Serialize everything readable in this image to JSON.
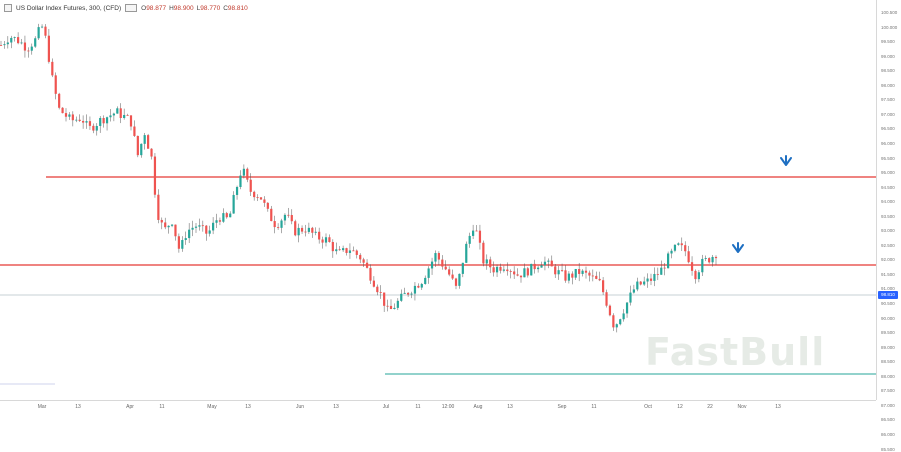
{
  "header": {
    "title": "US Dollar Index Futures, 300, (CFD)",
    "ohlc": [
      {
        "label": "O",
        "value": "98.877"
      },
      {
        "label": "H",
        "value": "98.900"
      },
      {
        "label": "L",
        "value": "98.770"
      },
      {
        "label": "C",
        "value": "98.810"
      }
    ]
  },
  "price_tag": "98.810",
  "watermark": "FastBull",
  "chart_data": {
    "type": "candlestick",
    "y_ticks": [
      "100.500",
      "100.000",
      "99.500",
      "99.000",
      "98.500",
      "98.000",
      "97.500",
      "97.000",
      "96.500",
      "96.000",
      "95.500",
      "95.000",
      "94.500",
      "94.000",
      "93.500",
      "93.000",
      "92.500",
      "92.000",
      "91.500",
      "91.000",
      "90.500",
      "90.000",
      "89.500",
      "89.000",
      "88.500",
      "88.000",
      "87.500",
      "87.000",
      "86.500",
      "86.000",
      "85.500"
    ],
    "x_ticks": [
      "Mar",
      "13",
      "Apr",
      "11",
      "May",
      "13",
      "Jun",
      "13",
      "Jul",
      "11",
      "12:00",
      "Aug",
      "13",
      "Sep",
      "11",
      "Oct",
      "12",
      "22",
      "Nov",
      "13"
    ],
    "horizontal_lines": [
      {
        "role": "resistance",
        "color": "#e53935"
      },
      {
        "role": "resistance",
        "color": "#e53935"
      },
      {
        "role": "support",
        "color": "#26a69a"
      },
      {
        "role": "current-price",
        "color": "#90a4ae"
      }
    ],
    "arrows": [
      {
        "direction": "down",
        "color": "#1e6fc2"
      },
      {
        "direction": "down",
        "color": "#1e6fc2"
      }
    ],
    "colors": {
      "up": "#26a69a",
      "down": "#ef5350",
      "wick": "#555555"
    },
    "path": [
      {
        "x": 0.0,
        "y": 99.4
      },
      {
        "x": 0.01,
        "y": 99.7
      },
      {
        "x": 0.02,
        "y": 99.55
      },
      {
        "x": 0.03,
        "y": 99.3
      },
      {
        "x": 0.04,
        "y": 99.6
      },
      {
        "x": 0.046,
        "y": 100.1
      },
      {
        "x": 0.052,
        "y": 99.5
      },
      {
        "x": 0.058,
        "y": 98.3
      },
      {
        "x": 0.066,
        "y": 97.2
      },
      {
        "x": 0.08,
        "y": 96.8
      },
      {
        "x": 0.092,
        "y": 96.9
      },
      {
        "x": 0.1,
        "y": 96.5
      },
      {
        "x": 0.115,
        "y": 96.85
      },
      {
        "x": 0.132,
        "y": 97.1
      },
      {
        "x": 0.148,
        "y": 96.8
      },
      {
        "x": 0.156,
        "y": 95.6
      },
      {
        "x": 0.164,
        "y": 96.4
      },
      {
        "x": 0.172,
        "y": 95.5
      },
      {
        "x": 0.178,
        "y": 93.7
      },
      {
        "x": 0.186,
        "y": 93.0
      },
      {
        "x": 0.195,
        "y": 93.4
      },
      {
        "x": 0.204,
        "y": 92.3
      },
      {
        "x": 0.212,
        "y": 93.0
      },
      {
        "x": 0.222,
        "y": 93.2
      },
      {
        "x": 0.236,
        "y": 92.9
      },
      {
        "x": 0.248,
        "y": 93.5
      },
      {
        "x": 0.26,
        "y": 93.4
      },
      {
        "x": 0.268,
        "y": 94.4
      },
      {
        "x": 0.275,
        "y": 95.2
      },
      {
        "x": 0.284,
        "y": 94.4
      },
      {
        "x": 0.296,
        "y": 94.2
      },
      {
        "x": 0.305,
        "y": 93.6
      },
      {
        "x": 0.314,
        "y": 93.2
      },
      {
        "x": 0.325,
        "y": 93.6
      },
      {
        "x": 0.335,
        "y": 93.0
      },
      {
        "x": 0.348,
        "y": 93.1
      },
      {
        "x": 0.36,
        "y": 92.8
      },
      {
        "x": 0.372,
        "y": 92.7
      },
      {
        "x": 0.385,
        "y": 92.2
      },
      {
        "x": 0.398,
        "y": 92.4
      },
      {
        "x": 0.41,
        "y": 92.1
      },
      {
        "x": 0.425,
        "y": 91.3
      },
      {
        "x": 0.434,
        "y": 90.8
      },
      {
        "x": 0.442,
        "y": 90.2
      },
      {
        "x": 0.46,
        "y": 90.8
      },
      {
        "x": 0.48,
        "y": 91.3
      },
      {
        "x": 0.496,
        "y": 92.2
      },
      {
        "x": 0.51,
        "y": 91.6
      },
      {
        "x": 0.52,
        "y": 91.0
      },
      {
        "x": 0.53,
        "y": 92.4
      },
      {
        "x": 0.54,
        "y": 93.3
      },
      {
        "x": 0.55,
        "y": 92.0
      },
      {
        "x": 0.562,
        "y": 91.7
      },
      {
        "x": 0.576,
        "y": 91.85
      },
      {
        "x": 0.59,
        "y": 91.5
      },
      {
        "x": 0.605,
        "y": 91.7
      },
      {
        "x": 0.618,
        "y": 92.0
      },
      {
        "x": 0.63,
        "y": 91.7
      },
      {
        "x": 0.645,
        "y": 91.4
      },
      {
        "x": 0.66,
        "y": 91.6
      },
      {
        "x": 0.672,
        "y": 91.45
      },
      {
        "x": 0.684,
        "y": 91.2
      },
      {
        "x": 0.694,
        "y": 90.3
      },
      {
        "x": 0.7,
        "y": 89.7
      },
      {
        "x": 0.712,
        "y": 90.4
      },
      {
        "x": 0.724,
        "y": 91.1
      },
      {
        "x": 0.74,
        "y": 91.3
      },
      {
        "x": 0.752,
        "y": 91.6
      },
      {
        "x": 0.762,
        "y": 92.1
      },
      {
        "x": 0.772,
        "y": 92.5
      },
      {
        "x": 0.782,
        "y": 92.3
      },
      {
        "x": 0.792,
        "y": 91.5
      },
      {
        "x": 0.8,
        "y": 91.9
      },
      {
        "x": 0.81,
        "y": 92.1
      },
      {
        "x": 0.816,
        "y": 92.25
      }
    ]
  }
}
